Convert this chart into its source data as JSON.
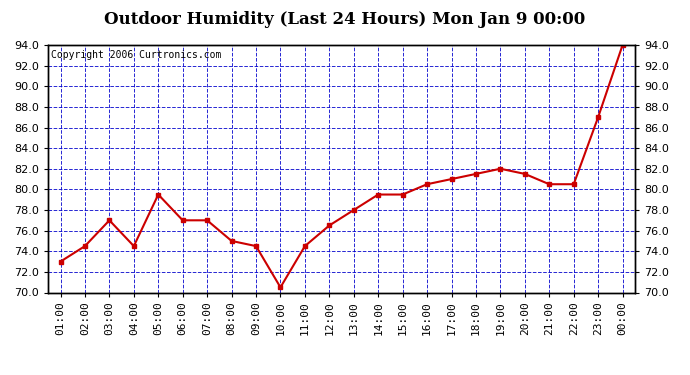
{
  "title": "Outdoor Humidity (Last 24 Hours) Mon Jan 9 00:00",
  "copyright": "Copyright 2006 Curtronics.com",
  "x_labels": [
    "01:00",
    "02:00",
    "03:00",
    "04:00",
    "05:00",
    "06:00",
    "07:00",
    "08:00",
    "09:00",
    "10:00",
    "11:00",
    "12:00",
    "13:00",
    "14:00",
    "15:00",
    "16:00",
    "17:00",
    "18:00",
    "19:00",
    "20:00",
    "21:00",
    "22:00",
    "23:00",
    "00:00"
  ],
  "y_values": [
    73.0,
    74.5,
    77.0,
    74.5,
    79.5,
    77.0,
    77.0,
    75.0,
    74.5,
    70.5,
    74.5,
    76.5,
    78.0,
    79.5,
    79.5,
    80.5,
    81.0,
    81.5,
    82.0,
    81.5,
    80.5,
    80.5,
    87.0,
    94.0
  ],
  "line_color": "#cc0000",
  "marker_color": "#cc0000",
  "fig_bg_color": "#ffffff",
  "plot_bg": "#ffffff",
  "grid_color": "#0000cc",
  "border_color": "#000000",
  "title_color": "#000000",
  "ylim": [
    70.0,
    94.0
  ],
  "ytick_step": 2.0,
  "title_fontsize": 12,
  "copyright_fontsize": 7,
  "tick_fontsize": 8
}
